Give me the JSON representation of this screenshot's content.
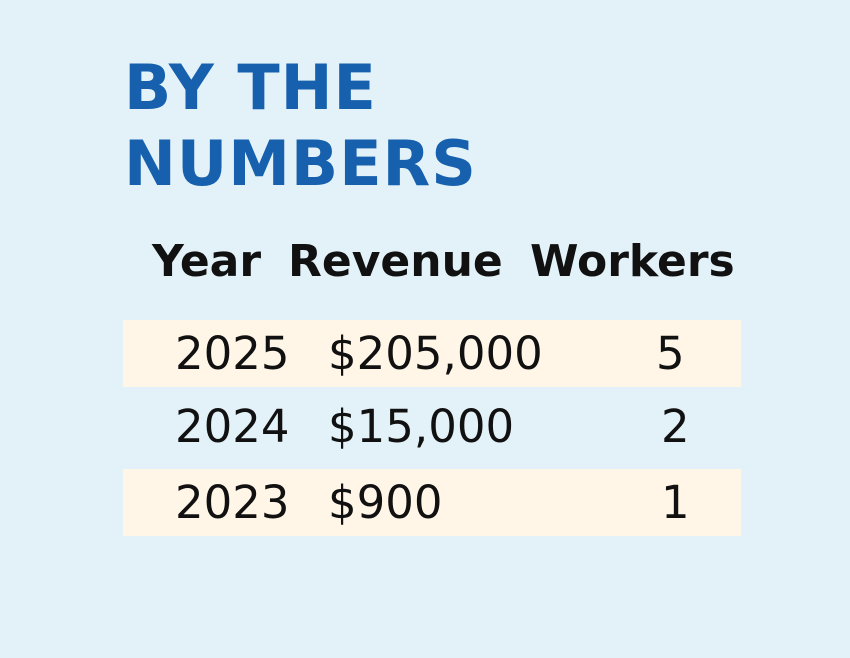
{
  "title": "BY THE\nNUMBERS",
  "colors": {
    "background": "#e3f2f9",
    "title": "#1660ad",
    "row_shade": "#fff6e7",
    "text": "#111111"
  },
  "chart_data": {
    "type": "table",
    "columns": [
      "Year",
      "Revenue",
      "Workers"
    ],
    "rows": [
      {
        "year": "2025",
        "revenue": "$205,000",
        "workers": "5",
        "shaded": true
      },
      {
        "year": "2024",
        "revenue": "$15,000",
        "workers": "2",
        "shaded": false
      },
      {
        "year": "2023",
        "revenue": "$900",
        "workers": "1",
        "shaded": true
      }
    ]
  }
}
